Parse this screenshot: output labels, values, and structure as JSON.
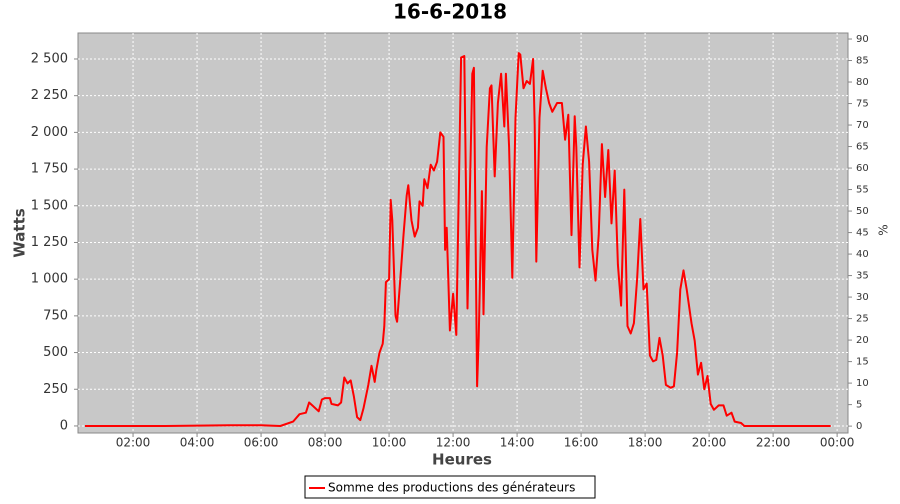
{
  "chart_data": {
    "type": "line",
    "title": "16-6-2018",
    "x_label": "Heures",
    "y_label": "Watts",
    "y2_label": "%",
    "xlim": [
      0.28,
      24.34
    ],
    "xticks": [
      {
        "value": 2,
        "label": "02:00"
      },
      {
        "value": 4,
        "label": "04:00"
      },
      {
        "value": 6,
        "label": "06:00"
      },
      {
        "value": 8,
        "label": "08:00"
      },
      {
        "value": 10,
        "label": "10:00"
      },
      {
        "value": 12,
        "label": "12:00"
      },
      {
        "value": 14,
        "label": "14:00"
      },
      {
        "value": 16,
        "label": "16:00"
      },
      {
        "value": 18,
        "label": "18:00"
      },
      {
        "value": 20,
        "label": "20:00"
      },
      {
        "value": 22,
        "label": "22:00"
      },
      {
        "value": 24,
        "label": "00:00"
      }
    ],
    "ylim": [
      -48,
      2677
    ],
    "yticks": [
      0,
      250,
      500,
      750,
      {
        "value": 1000,
        "label": "1 000"
      },
      {
        "value": 1250,
        "label": "1 250"
      },
      {
        "value": 1500,
        "label": "1 500"
      },
      {
        "value": 1750,
        "label": "1 750"
      },
      {
        "value": 2000,
        "label": "2 000"
      },
      {
        "value": 2250,
        "label": "2 250"
      },
      {
        "value": 2500,
        "label": "2 500"
      }
    ],
    "y2lim": [
      -1.6,
      91.4
    ],
    "y2ticks": [
      0,
      5,
      10,
      15,
      20,
      25,
      30,
      35,
      40,
      45,
      50,
      55,
      60,
      65,
      70,
      75,
      80,
      85,
      90
    ],
    "grid": true,
    "legend": "bottom",
    "x": [
      0.5,
      3,
      5,
      6,
      6.6,
      7.0,
      7.2,
      7.4,
      7.5,
      7.6,
      7.8,
      7.9,
      8.0,
      8.15,
      8.2,
      8.4,
      8.5,
      8.6,
      8.7,
      8.8,
      8.9,
      9.0,
      9.1,
      9.2,
      9.35,
      9.45,
      9.55,
      9.6,
      9.7,
      9.8,
      9.85,
      9.9,
      10.0,
      10.05,
      10.1,
      10.2,
      10.25,
      10.35,
      10.45,
      10.55,
      10.6,
      10.7,
      10.8,
      10.9,
      10.95,
      11.05,
      11.1,
      11.2,
      11.3,
      11.4,
      11.5,
      11.6,
      11.7,
      11.75,
      11.8,
      11.9,
      12.0,
      12.1,
      12.25,
      12.35,
      12.45,
      12.6,
      12.65,
      12.75,
      12.8,
      12.9,
      12.95,
      13.05,
      13.15,
      13.2,
      13.3,
      13.4,
      13.5,
      13.6,
      13.65,
      13.75,
      13.85,
      13.95,
      14.05,
      14.1,
      14.2,
      14.3,
      14.4,
      14.5,
      14.55,
      14.6,
      14.7,
      14.8,
      14.9,
      15.0,
      15.1,
      15.25,
      15.4,
      15.5,
      15.6,
      15.7,
      15.8,
      15.85,
      15.95,
      16.05,
      16.15,
      16.25,
      16.35,
      16.45,
      16.55,
      16.65,
      16.75,
      16.85,
      16.95,
      17.05,
      17.15,
      17.25,
      17.35,
      17.45,
      17.55,
      17.65,
      17.75,
      17.85,
      17.95,
      18.05,
      18.15,
      18.25,
      18.35,
      18.45,
      18.55,
      18.65,
      18.8,
      18.9,
      19.0,
      19.1,
      19.2,
      19.3,
      19.45,
      19.55,
      19.65,
      19.75,
      19.85,
      19.95,
      20.05,
      20.15,
      20.3,
      20.45,
      20.55,
      20.7,
      20.8,
      21.0,
      21.1,
      23.8
    ],
    "series": [
      {
        "name": "Somme des productions des  générateurs",
        "color": "#ff0000",
        "values": [
          0,
          0,
          5,
          5,
          0,
          30,
          80,
          90,
          160,
          140,
          100,
          180,
          190,
          190,
          150,
          140,
          160,
          330,
          290,
          310,
          200,
          60,
          40,
          120,
          280,
          410,
          300,
          380,
          500,
          560,
          680,
          980,
          1000,
          1540,
          1400,
          750,
          710,
          1000,
          1300,
          1570,
          1640,
          1400,
          1290,
          1350,
          1530,
          1500,
          1680,
          1620,
          1780,
          1740,
          1800,
          2000,
          1970,
          1200,
          1350,
          650,
          900,
          620,
          2510,
          2520,
          800,
          2400,
          2440,
          270,
          600,
          1600,
          760,
          1900,
          2300,
          2320,
          1700,
          2200,
          2400,
          2040,
          2400,
          1900,
          1010,
          2100,
          2540,
          2530,
          2300,
          2350,
          2330,
          2500,
          2050,
          1120,
          2100,
          2420,
          2300,
          2200,
          2140,
          2200,
          2200,
          1950,
          2120,
          1300,
          2110,
          1900,
          1080,
          1780,
          2040,
          1800,
          1200,
          990,
          1300,
          1920,
          1560,
          1880,
          1380,
          1740,
          1100,
          820,
          1610,
          680,
          630,
          700,
          1000,
          1410,
          930,
          970,
          480,
          440,
          450,
          600,
          480,
          280,
          260,
          270,
          500,
          930,
          1060,
          930,
          700,
          580,
          350,
          430,
          250,
          340,
          150,
          110,
          140,
          140,
          70,
          90,
          30,
          20,
          0,
          0
        ]
      }
    ]
  }
}
